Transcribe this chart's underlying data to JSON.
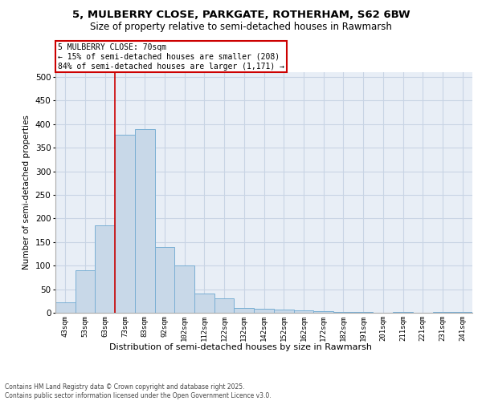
{
  "title1": "5, MULBERRY CLOSE, PARKGATE, ROTHERHAM, S62 6BW",
  "title2": "Size of property relative to semi-detached houses in Rawmarsh",
  "xlabel": "Distribution of semi-detached houses by size in Rawmarsh",
  "ylabel": "Number of semi-detached properties",
  "annotation_title": "5 MULBERRY CLOSE: 70sqm",
  "annotation_line1": "← 15% of semi-detached houses are smaller (208)",
  "annotation_line2": "84% of semi-detached houses are larger (1,171) →",
  "footer1": "Contains HM Land Registry data © Crown copyright and database right 2025.",
  "footer2": "Contains public sector information licensed under the Open Government Licence v3.0.",
  "bar_labels": [
    "43sqm",
    "53sqm",
    "63sqm",
    "73sqm",
    "83sqm",
    "92sqm",
    "102sqm",
    "112sqm",
    "122sqm",
    "132sqm",
    "142sqm",
    "152sqm",
    "162sqm",
    "172sqm",
    "182sqm",
    "191sqm",
    "201sqm",
    "211sqm",
    "221sqm",
    "231sqm",
    "241sqm"
  ],
  "bar_values": [
    22,
    90,
    185,
    378,
    390,
    140,
    101,
    40,
    30,
    11,
    9,
    7,
    5,
    4,
    2,
    1,
    0,
    2,
    0,
    1,
    2
  ],
  "bar_color": "#c8d8e8",
  "bar_edge_color": "#7aafd4",
  "grid_color": "#c8d4e4",
  "bg_color": "#e8eef6",
  "vline_color": "#cc0000",
  "annotation_box_color": "#cc0000",
  "ylim_max": 510,
  "yticks": [
    0,
    50,
    100,
    150,
    200,
    250,
    300,
    350,
    400,
    450,
    500
  ]
}
